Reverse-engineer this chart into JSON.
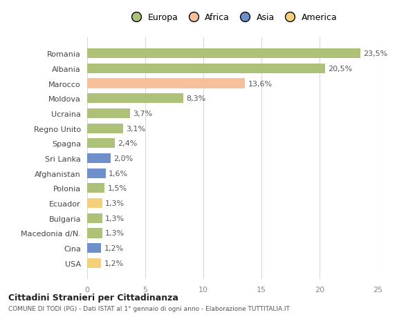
{
  "categories": [
    "Romania",
    "Albania",
    "Marocco",
    "Moldova",
    "Ucraina",
    "Regno Unito",
    "Spagna",
    "Sri Lanka",
    "Afghanistan",
    "Polonia",
    "Ecuador",
    "Bulgaria",
    "Macedonia d/N.",
    "Cina",
    "USA"
  ],
  "values": [
    23.5,
    20.5,
    13.6,
    8.3,
    3.7,
    3.1,
    2.4,
    2.0,
    1.6,
    1.5,
    1.3,
    1.3,
    1.3,
    1.2,
    1.2
  ],
  "labels": [
    "23,5%",
    "20,5%",
    "13,6%",
    "8,3%",
    "3,7%",
    "3,1%",
    "2,4%",
    "2,0%",
    "1,6%",
    "1,5%",
    "1,3%",
    "1,3%",
    "1,3%",
    "1,2%",
    "1,2%"
  ],
  "continent": [
    "Europa",
    "Europa",
    "Africa",
    "Europa",
    "Europa",
    "Europa",
    "Europa",
    "Asia",
    "Asia",
    "Europa",
    "America",
    "Europa",
    "Europa",
    "Asia",
    "America"
  ],
  "colors": {
    "Europa": "#adc178",
    "Africa": "#f5c09a",
    "Asia": "#6e8fc9",
    "America": "#f5d07a"
  },
  "legend_labels": [
    "Europa",
    "Africa",
    "Asia",
    "America"
  ],
  "legend_colors": [
    "#adc178",
    "#f5c09a",
    "#6e8fc9",
    "#f5d07a"
  ],
  "xlim": [
    0,
    25
  ],
  "xticks": [
    0,
    5,
    10,
    15,
    20,
    25
  ],
  "title": "Cittadini Stranieri per Cittadinanza",
  "subtitle": "COMUNE DI TODI (PG) - Dati ISTAT al 1° gennaio di ogni anno - Elaborazione TUTTITALIA.IT",
  "bg_color": "#ffffff",
  "grid_color": "#d8d8d8",
  "bar_height": 0.65,
  "label_fontsize": 8,
  "ytick_fontsize": 8,
  "xtick_fontsize": 8
}
